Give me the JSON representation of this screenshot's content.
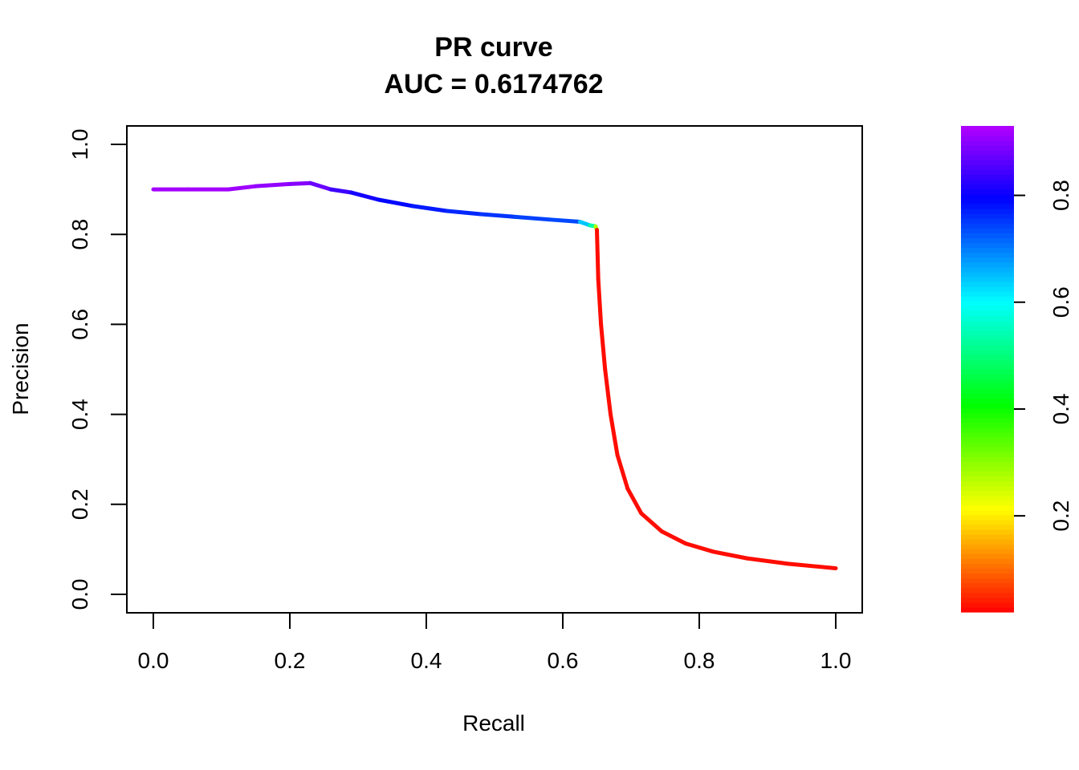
{
  "chart_data": {
    "type": "line",
    "title_lines": [
      "PR curve",
      "AUC = 0.6174762"
    ],
    "xlabel": "Recall",
    "ylabel": "Precision",
    "xlim": [
      0,
      1
    ],
    "ylim": [
      0,
      1
    ],
    "x_ticks": [
      "0.0",
      "0.2",
      "0.4",
      "0.6",
      "0.8",
      "1.0"
    ],
    "y_ticks": [
      "0.0",
      "0.2",
      "0.4",
      "0.6",
      "0.8",
      "1.0"
    ],
    "grid": false,
    "legend": "none",
    "curve": [
      {
        "x": 0.0,
        "y": 0.9,
        "score": 0.92
      },
      {
        "x": 0.05,
        "y": 0.9,
        "score": 0.92
      },
      {
        "x": 0.11,
        "y": 0.9,
        "score": 0.92
      },
      {
        "x": 0.15,
        "y": 0.907,
        "score": 0.91
      },
      {
        "x": 0.2,
        "y": 0.912,
        "score": 0.9
      },
      {
        "x": 0.23,
        "y": 0.914,
        "score": 0.89
      },
      {
        "x": 0.26,
        "y": 0.9,
        "score": 0.86
      },
      {
        "x": 0.29,
        "y": 0.893,
        "score": 0.82
      },
      {
        "x": 0.33,
        "y": 0.877,
        "score": 0.8
      },
      {
        "x": 0.38,
        "y": 0.863,
        "score": 0.78
      },
      {
        "x": 0.43,
        "y": 0.852,
        "score": 0.77
      },
      {
        "x": 0.48,
        "y": 0.845,
        "score": 0.76
      },
      {
        "x": 0.53,
        "y": 0.839,
        "score": 0.75
      },
      {
        "x": 0.58,
        "y": 0.833,
        "score": 0.74
      },
      {
        "x": 0.625,
        "y": 0.828,
        "score": 0.74
      },
      {
        "x": 0.64,
        "y": 0.82,
        "score": 0.55
      },
      {
        "x": 0.648,
        "y": 0.818,
        "score": 0.52
      },
      {
        "x": 0.65,
        "y": 0.81,
        "score": 0.03
      },
      {
        "x": 0.652,
        "y": 0.7,
        "score": 0.03
      },
      {
        "x": 0.656,
        "y": 0.6,
        "score": 0.03
      },
      {
        "x": 0.662,
        "y": 0.5,
        "score": 0.03
      },
      {
        "x": 0.67,
        "y": 0.4,
        "score": 0.03
      },
      {
        "x": 0.68,
        "y": 0.31,
        "score": 0.03
      },
      {
        "x": 0.695,
        "y": 0.235,
        "score": 0.03
      },
      {
        "x": 0.715,
        "y": 0.18,
        "score": 0.03
      },
      {
        "x": 0.745,
        "y": 0.14,
        "score": 0.03
      },
      {
        "x": 0.78,
        "y": 0.113,
        "score": 0.03
      },
      {
        "x": 0.82,
        "y": 0.095,
        "score": 0.03
      },
      {
        "x": 0.87,
        "y": 0.08,
        "score": 0.03
      },
      {
        "x": 0.93,
        "y": 0.068,
        "score": 0.03
      },
      {
        "x": 1.0,
        "y": 0.058,
        "score": 0.03
      }
    ],
    "colorbar": {
      "range": [
        0.02,
        0.93
      ],
      "ticks": [
        "0.2",
        "0.4",
        "0.6",
        "0.8"
      ],
      "tick_values": [
        0.2,
        0.4,
        0.6,
        0.8
      ],
      "palette": "rainbow red-to-violet"
    }
  }
}
